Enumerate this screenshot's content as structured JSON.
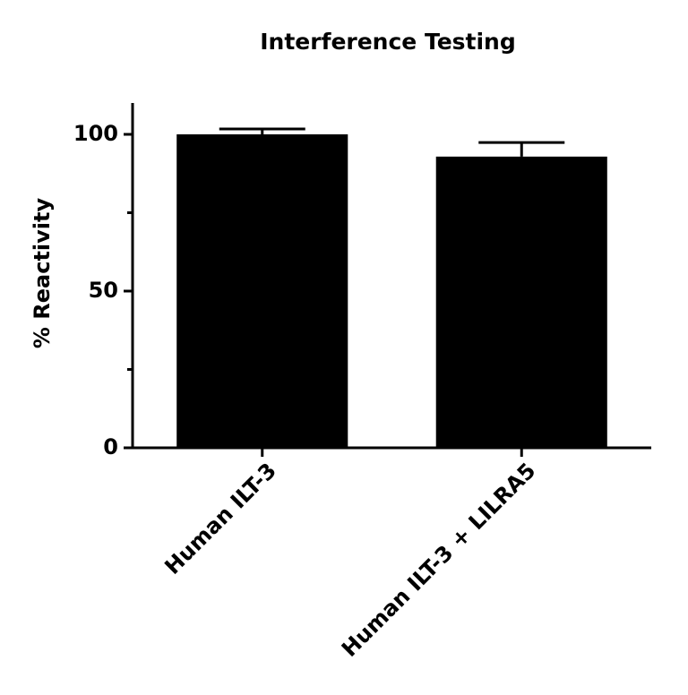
{
  "chart_data": {
    "type": "bar",
    "title": "Interference Testing",
    "y_label": "% Reactivity",
    "categories": [
      "Human ILT-3",
      "Human ILT-3 + LILRA5"
    ],
    "values": [
      100,
      92.9
    ],
    "errors": [
      1.7,
      4.5
    ],
    "color": "#000000",
    "ylim": [
      0,
      110
    ],
    "yticks": [
      0,
      50,
      100
    ],
    "minor_yticks": [
      25,
      75
    ],
    "grid": false
  }
}
